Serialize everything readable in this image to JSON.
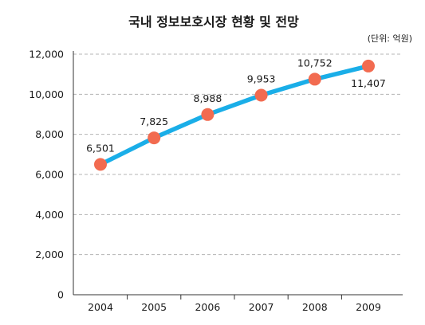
{
  "colors": {
    "line": "#1aaee8",
    "marker": "#f26b50",
    "grid": "#b4b4b4",
    "axis": "#333333"
  },
  "chart_data": {
    "type": "line",
    "title": "국내 정보보호시장 현황 및 전망",
    "unit_note": "(단위: 억원)",
    "xlabel": "",
    "ylabel": "",
    "categories": [
      "2004",
      "2005",
      "2006",
      "2007",
      "2008",
      "2009"
    ],
    "series": [
      {
        "values": [
          6501,
          7825,
          8988,
          9953,
          10752,
          11407
        ],
        "labels": [
          "6,501",
          "7,825",
          "8,988",
          "9,953",
          "10,752",
          "11,407"
        ]
      }
    ],
    "ylim": [
      0,
      12000
    ],
    "yticks": [
      0,
      2000,
      4000,
      6000,
      8000,
      10000,
      12000
    ],
    "ytick_labels": [
      "0",
      "2,000",
      "4,000",
      "6,000",
      "8,000",
      "10,000",
      "12,000"
    ],
    "grid": true,
    "legend": "none"
  }
}
